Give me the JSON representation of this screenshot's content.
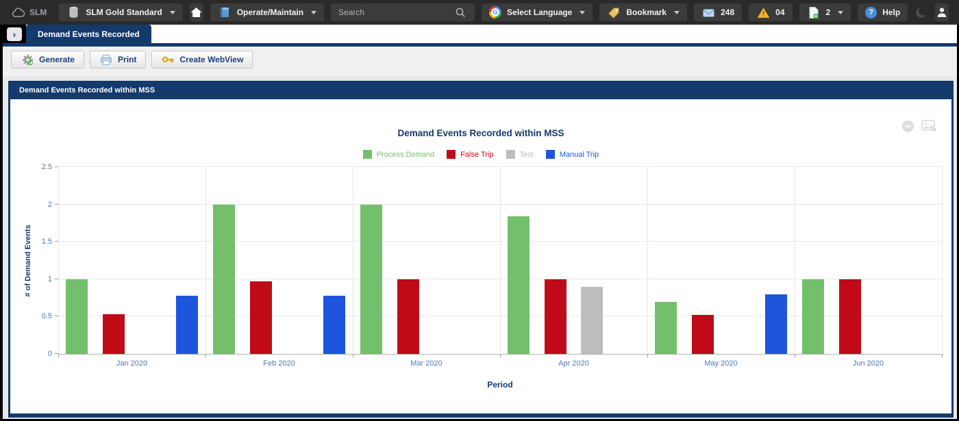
{
  "topbar": {
    "logo": "SLM",
    "database_selector": "SLM Gold Standard",
    "module_selector": "Operate/Maintain",
    "search_placeholder": "Search",
    "language_selector": "Select Language",
    "bookmark_label": "Bookmark",
    "mail_count": "248",
    "alert_count": "04",
    "doc_count": "2",
    "help_label": "Help",
    "help_glyph": "?",
    "google_letter": "G"
  },
  "tab": {
    "title": "Demand Events Recorded",
    "expand_glyph": "›"
  },
  "toolbar": {
    "generate_label": "Generate",
    "print_label": "Print",
    "create_webview_label": "Create WebView"
  },
  "panel": {
    "header": "Demand Events Recorded within MSS"
  },
  "colors": {
    "navy": "#133a6b",
    "topbar_bg": "#2a2a2a",
    "axis_text": "#4c77b5"
  },
  "icons": {
    "chart_collapse": "circle-minus-icon",
    "chart_export": "image-export-icon"
  },
  "chart_data": {
    "type": "bar",
    "title": "Demand Events Recorded within MSS",
    "xlabel": "Period",
    "ylabel": "# of Demand Events",
    "ylim": [
      0,
      2.5
    ],
    "yticks": [
      0,
      0.5,
      1,
      1.5,
      2,
      2.5
    ],
    "grid": true,
    "legend_position": "top",
    "categories": [
      "Jan 2020",
      "Feb 2020",
      "Mar 2020",
      "Apr 2020",
      "May 2020",
      "Jun 2020"
    ],
    "series": [
      {
        "name": "Process Demand",
        "color": "#74bf6c",
        "values": [
          1.0,
          2.0,
          2.0,
          1.84,
          0.7,
          1.0
        ]
      },
      {
        "name": "False Trip",
        "color": "#c00a18",
        "values": [
          0.53,
          0.97,
          1.0,
          1.0,
          0.52,
          1.0
        ]
      },
      {
        "name": "Test",
        "color": "#bdbdbd",
        "values": [
          null,
          null,
          null,
          0.9,
          null,
          null
        ]
      },
      {
        "name": "Manual Trip",
        "color": "#1d56dd",
        "values": [
          0.78,
          0.78,
          null,
          null,
          0.8,
          null
        ]
      }
    ]
  }
}
